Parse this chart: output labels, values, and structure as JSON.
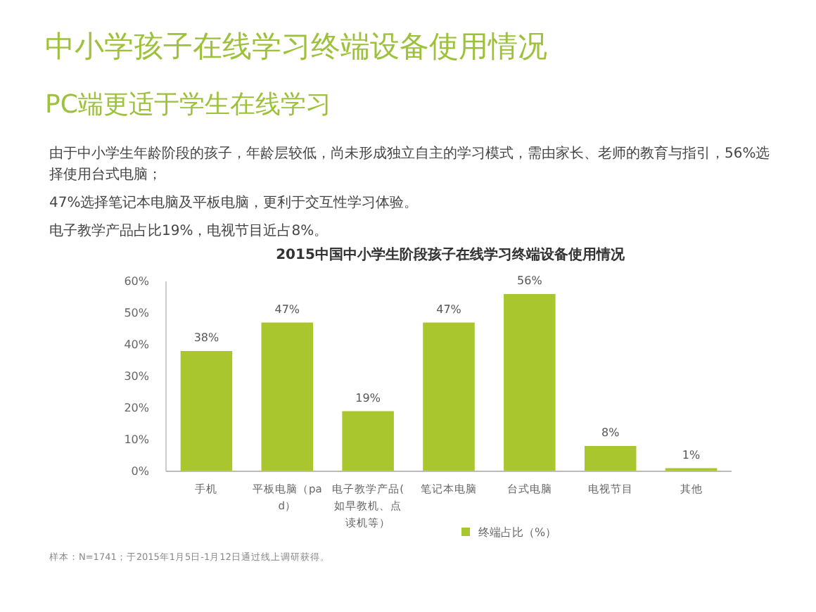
{
  "chart_data": {
    "type": "bar",
    "title": "中小学孩子在线学习终端设备使用情况",
    "subtitle": "PC端更适于学生在线学习",
    "annotations": [
      "由于中小学生年龄阶段的孩子，年龄层较低，尚未形成独立自主的学习模式，需由家长、老师的教育与指引，56%选择使用台式电脑；",
      "47%选择笔记本电脑及平板电脑，更利于交互性学习体验。",
      "电子教学产品占比19%，电视节目近占8%。",
      "2015中国中小学生阶段孩子在线学习终端设备使用情况",
      "样本：N=1741；于2015年1月5日-1月12日通过线上调研获得。"
    ],
    "categories": [
      "手机",
      "平板电脑（pad）",
      "电子教学产品(如早教机、点读机等）",
      "笔记本电脑",
      "台式电脑",
      "电视节目",
      "其他"
    ],
    "series": [
      {
        "name": "终端占比（%）",
        "color": "#a9c62f",
        "values": [
          38,
          47,
          19,
          47,
          56,
          8,
          1
        ],
        "value_labels": [
          "38%",
          "47%",
          "19%",
          "47%",
          "56%",
          "8%",
          "1%"
        ]
      }
    ],
    "ylim": [
      0,
      60
    ],
    "yticks": [
      {
        "value": 0,
        "label": "0%"
      },
      {
        "value": 10,
        "label": "10%"
      },
      {
        "value": 20,
        "label": "20%"
      },
      {
        "value": 30,
        "label": "30%"
      },
      {
        "value": 40,
        "label": "40%"
      },
      {
        "value": 50,
        "label": "50%"
      },
      {
        "value": 60,
        "label": "60%"
      }
    ],
    "grid": false,
    "legend": "bottom"
  }
}
